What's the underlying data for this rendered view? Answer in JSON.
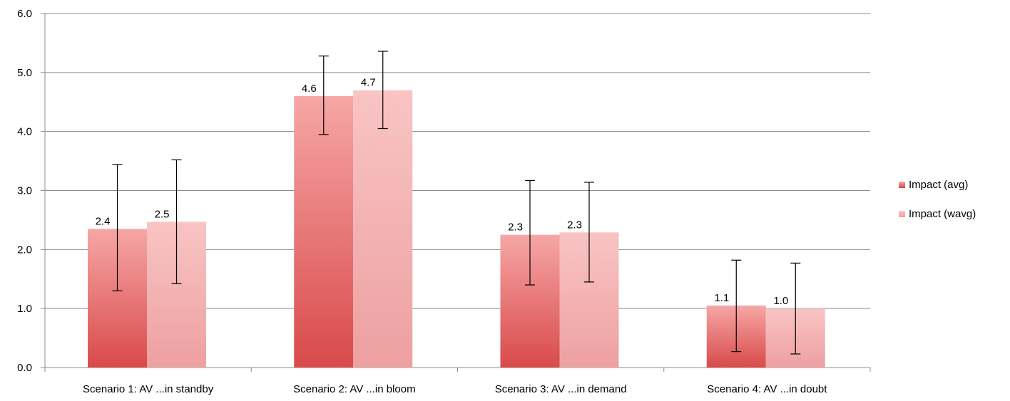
{
  "chart_data": {
    "type": "bar",
    "title": "",
    "xlabel": "",
    "ylabel": "",
    "ylim": [
      0,
      6
    ],
    "yticks": [
      "0.0",
      "1.0",
      "2.0",
      "3.0",
      "4.0",
      "5.0",
      "6.0"
    ],
    "grid": true,
    "legend_position": "right",
    "categories": [
      "Scenario 1: AV  ...in standby",
      "Scenario 2: AV ...in bloom",
      "Scenario 3: AV ...in demand",
      "Scenario 4:  AV ...in doubt"
    ],
    "series": [
      {
        "name": "Impact (avg)",
        "color": "#e06a6a",
        "values": [
          2.35,
          4.6,
          2.25,
          1.05
        ],
        "labels": [
          "2.4",
          "4.6",
          "2.3",
          "1.1"
        ],
        "error_low": [
          1.3,
          3.95,
          1.4,
          0.27
        ],
        "error_high": [
          3.44,
          5.28,
          3.17,
          1.82
        ]
      },
      {
        "name": "Impact (wavg)",
        "color": "#f2b0b0",
        "values": [
          2.47,
          4.7,
          2.29,
          1.0
        ],
        "labels": [
          "2.5",
          "4.7",
          "2.3",
          "1.0"
        ],
        "error_low": [
          1.42,
          4.05,
          1.45,
          0.23
        ],
        "error_high": [
          3.52,
          5.36,
          3.14,
          1.77
        ]
      }
    ]
  }
}
